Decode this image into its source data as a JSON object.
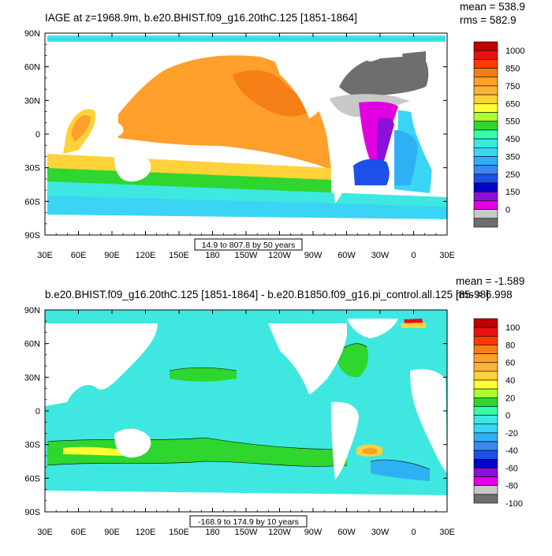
{
  "chart_data": [
    {
      "type": "heatmap",
      "title": "IAGE at z=1968.9m, b.e20.BHIST.f09_g16.20thC.125 [1851-1864]",
      "stats": {
        "mean": "mean = 538.9",
        "rms": "rms = 582.9"
      },
      "x_tick_labels": [
        "30E",
        "60E",
        "90E",
        "120E",
        "150E",
        "180",
        "150W",
        "120W",
        "90W",
        "60W",
        "30W",
        "0",
        "30E"
      ],
      "y_tick_labels": [
        "90N",
        "60N",
        "30N",
        "0",
        "30S",
        "60S",
        "90S"
      ],
      "xlim": [
        30,
        390
      ],
      "ylim": [
        -90,
        90
      ],
      "colorbar": {
        "labels": [
          "1000",
          "850",
          "750",
          "650",
          "550",
          "450",
          "350",
          "250",
          "150",
          "0"
        ],
        "colors": [
          "#c00000",
          "#e81010",
          "#ff3a00",
          "#f57f17",
          "#ff9f2c",
          "#f9b23a",
          "#ffd23a",
          "#ffff33",
          "#adff2f",
          "#2ed62e",
          "#33ffaa",
          "#3ee8e0",
          "#3ad4f4",
          "#2fb0f5",
          "#3b86f0",
          "#1c50e8",
          "#0000c8",
          "#8c10d8",
          "#e000e0",
          "#c8c8c8",
          "#6e6e6e"
        ]
      },
      "contour_info": "14.9 to 807.8 by 50 years"
    },
    {
      "type": "heatmap",
      "title": "b.e20.BHIST.f09_g16.20thC.125 [1851-1864] - b.e20.B1850.f09_g16.pi_control.all.125 [85-98]",
      "stats": {
        "mean": "mean = -1.589",
        "rms": "rms = 6.998"
      },
      "x_tick_labels": [
        "30E",
        "60E",
        "90E",
        "120E",
        "150E",
        "180",
        "150W",
        "120W",
        "90W",
        "60W",
        "30W",
        "0",
        "30E"
      ],
      "y_tick_labels": [
        "90N",
        "60N",
        "30N",
        "0",
        "30S",
        "60S",
        "90S"
      ],
      "xlim": [
        30,
        390
      ],
      "ylim": [
        -90,
        90
      ],
      "colorbar": {
        "labels": [
          "100",
          "80",
          "60",
          "40",
          "20",
          "0",
          "-20",
          "-40",
          "-60",
          "-80",
          "-100"
        ],
        "colors": [
          "#c00000",
          "#e81010",
          "#ff3a00",
          "#f57f17",
          "#ff9f2c",
          "#f9b23a",
          "#ffd23a",
          "#ffff33",
          "#adff2f",
          "#2ed62e",
          "#33ffaa",
          "#3ee8e0",
          "#3ad4f4",
          "#2fb0f5",
          "#3b86f0",
          "#1c50e8",
          "#0000c8",
          "#8c10d8",
          "#e000e0",
          "#c8c8c8",
          "#6e6e6e"
        ]
      },
      "contour_info": "-168.9 to 174.9 by 10 years"
    }
  ]
}
